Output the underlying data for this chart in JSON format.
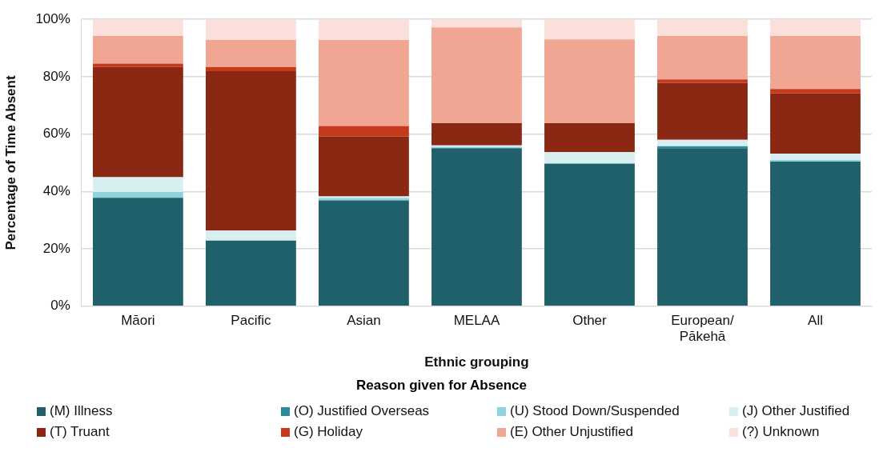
{
  "chart_data": {
    "type": "bar",
    "stacked": true,
    "xlabel": "Ethnic grouping",
    "ylabel": "Percentage of Time Absent",
    "legend_title": "Reason given for Absence",
    "legend": "bottom",
    "grid": "y",
    "categories": [
      "Māori",
      "Pacific",
      "Asian",
      "MELAA",
      "Other",
      "European/\nPākehā",
      "All"
    ],
    "ylim": [
      0,
      100
    ],
    "yticks": [
      {
        "value": 0,
        "label": "0%"
      },
      {
        "value": 20,
        "label": "20%"
      },
      {
        "value": 40,
        "label": "40%"
      },
      {
        "value": 60,
        "label": "60%"
      },
      {
        "value": 80,
        "label": "80%"
      },
      {
        "value": 100,
        "label": "100%"
      }
    ],
    "series": [
      {
        "name": "(M) Illness",
        "color": "#20606a",
        "values": [
          37.8,
          22.9,
          36.9,
          55.1,
          49.7,
          55.1,
          50.4
        ]
      },
      {
        "name": "(O) Justified Overseas",
        "color": "#2a8c9a",
        "values": [
          0,
          0,
          0,
          0,
          0,
          0.7,
          0
        ]
      },
      {
        "name": "(U) Stood Down/Suspended",
        "color": "#8fd4dc",
        "values": [
          2.0,
          0,
          0.8,
          0.5,
          0,
          0,
          0.6
        ]
      },
      {
        "name": "(J) Other Justified",
        "color": "#d8eff1",
        "values": [
          5.2,
          3.5,
          0.6,
          0.5,
          4.0,
          2.2,
          2.2
        ]
      },
      {
        "name": "(T) Truant",
        "color": "#8a2814",
        "values": [
          38.4,
          55.5,
          20.9,
          7.7,
          10.1,
          19.8,
          21.0
        ]
      },
      {
        "name": "(G) Holiday",
        "color": "#c63a1c",
        "values": [
          1.2,
          1.5,
          3.6,
          0.0,
          0.0,
          1.3,
          1.5
        ]
      },
      {
        "name": "(E) Other Unjustified",
        "color": "#f0a693",
        "values": [
          9.6,
          9.5,
          30.0,
          33.4,
          29.2,
          15.1,
          18.5
        ]
      },
      {
        "name": "(?) Unknown",
        "color": "#fbdfdb",
        "values": [
          5.8,
          7.1,
          7.2,
          2.8,
          7.0,
          5.8,
          5.8
        ]
      }
    ]
  }
}
